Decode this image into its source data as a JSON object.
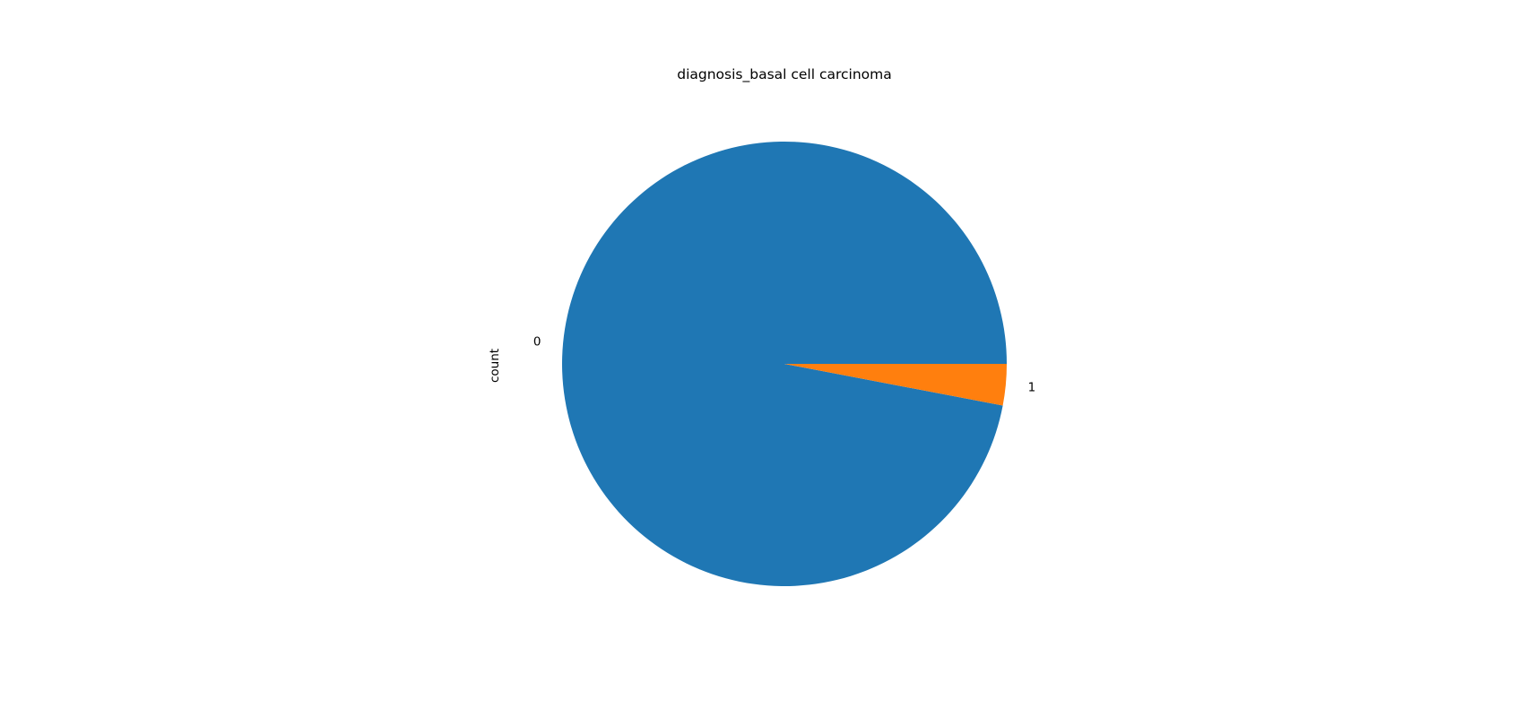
{
  "chart_data": {
    "type": "pie",
    "title": "diagnosis_basal cell carcinoma",
    "ylabel": "count",
    "categories": [
      "0",
      "1"
    ],
    "values": [
      0.97,
      0.03
    ],
    "colors": [
      "#1f77b4",
      "#ff7f0e"
    ],
    "legend": "none",
    "grid": false
  }
}
